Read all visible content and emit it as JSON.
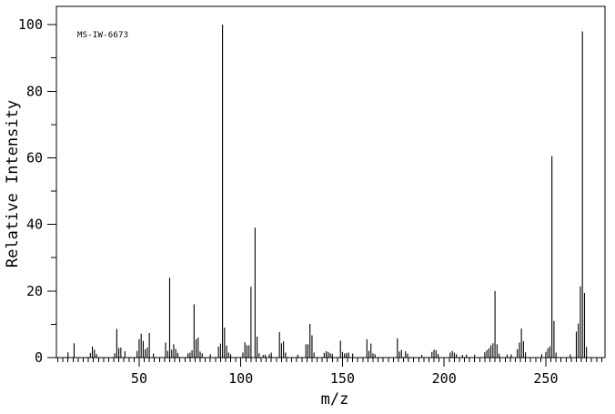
{
  "figure": {
    "background_color": "#ffffff",
    "line_color": "#000000"
  },
  "chart_data": {
    "type": "bar",
    "subtype": "mass-spectrum-stick-plot",
    "title": "MS-IW-6673",
    "xlabel": "m/z",
    "ylabel": "Relative Intensity",
    "xlim": [
      9.3,
      279.1
    ],
    "ylim": [
      0,
      105.5
    ],
    "x_ticks_major": [
      50,
      100,
      150,
      200,
      250
    ],
    "x_tick_minor_step": 2.5,
    "y_ticks_major": [
      0,
      20,
      40,
      60,
      80,
      100
    ],
    "y_tick_minor_step": 10,
    "grid": false,
    "legend": false,
    "peaks": [
      [
        15,
        1.6
      ],
      [
        18,
        4.3
      ],
      [
        26,
        1.4
      ],
      [
        27,
        3.3
      ],
      [
        28,
        2.4
      ],
      [
        29,
        1.1
      ],
      [
        38,
        1.3
      ],
      [
        39,
        8.6
      ],
      [
        40,
        2.9
      ],
      [
        41,
        3.0
      ],
      [
        43,
        1.9
      ],
      [
        49,
        2.0
      ],
      [
        50,
        5.6
      ],
      [
        51,
        7.2
      ],
      [
        52,
        5.0
      ],
      [
        53,
        2.5
      ],
      [
        54,
        3.0
      ],
      [
        55,
        7.4
      ],
      [
        57,
        1.2
      ],
      [
        63,
        4.5
      ],
      [
        64,
        2.0
      ],
      [
        65,
        24.0
      ],
      [
        66,
        2.4
      ],
      [
        67,
        4.0
      ],
      [
        68,
        2.6
      ],
      [
        69,
        1.4
      ],
      [
        74,
        1.3
      ],
      [
        75,
        1.5
      ],
      [
        76,
        2.2
      ],
      [
        77,
        16.0
      ],
      [
        78,
        5.5
      ],
      [
        79,
        6.0
      ],
      [
        80,
        1.8
      ],
      [
        81,
        1.3
      ],
      [
        85,
        1.0
      ],
      [
        89,
        3.3
      ],
      [
        90,
        4.2
      ],
      [
        91,
        100.0
      ],
      [
        92,
        9.0
      ],
      [
        93,
        3.6
      ],
      [
        94,
        1.5
      ],
      [
        95,
        1.0
      ],
      [
        101,
        1.5
      ],
      [
        102,
        4.6
      ],
      [
        103,
        3.7
      ],
      [
        104,
        3.7
      ],
      [
        105,
        21.3
      ],
      [
        107,
        39.0
      ],
      [
        108,
        6.3
      ],
      [
        109,
        1.3
      ],
      [
        111,
        0.8
      ],
      [
        112,
        0.9
      ],
      [
        114,
        1.0
      ],
      [
        115,
        1.5
      ],
      [
        119,
        7.7
      ],
      [
        120,
        4.3
      ],
      [
        121,
        4.9
      ],
      [
        122,
        1.5
      ],
      [
        128,
        0.9
      ],
      [
        132,
        4.0
      ],
      [
        133,
        4.0
      ],
      [
        134,
        10.1
      ],
      [
        135,
        6.7
      ],
      [
        136,
        1.5
      ],
      [
        141,
        1.4
      ],
      [
        142,
        1.9
      ],
      [
        143,
        1.7
      ],
      [
        144,
        1.3
      ],
      [
        145,
        1.1
      ],
      [
        149,
        5.1
      ],
      [
        150,
        1.7
      ],
      [
        151,
        1.2
      ],
      [
        152,
        1.4
      ],
      [
        153,
        1.5
      ],
      [
        155,
        1.2
      ],
      [
        162,
        5.5
      ],
      [
        163,
        2.0
      ],
      [
        164,
        4.2
      ],
      [
        165,
        1.3
      ],
      [
        166,
        1.0
      ],
      [
        177,
        5.8
      ],
      [
        178,
        1.8
      ],
      [
        179,
        2.3
      ],
      [
        181,
        1.9
      ],
      [
        182,
        1.2
      ],
      [
        189,
        0.8
      ],
      [
        194,
        1.7
      ],
      [
        195,
        2.4
      ],
      [
        196,
        2.2
      ],
      [
        197,
        1.1
      ],
      [
        203,
        1.5
      ],
      [
        204,
        2.0
      ],
      [
        205,
        1.5
      ],
      [
        206,
        1.0
      ],
      [
        209,
        0.8
      ],
      [
        211,
        0.9
      ],
      [
        215,
        0.9
      ],
      [
        220,
        1.6
      ],
      [
        221,
        2.2
      ],
      [
        222,
        2.8
      ],
      [
        223,
        3.7
      ],
      [
        224,
        4.3
      ],
      [
        225,
        20.0
      ],
      [
        226,
        4.0
      ],
      [
        227,
        1.2
      ],
      [
        231,
        0.9
      ],
      [
        233,
        1.0
      ],
      [
        236,
        2.5
      ],
      [
        237,
        4.5
      ],
      [
        238,
        8.7
      ],
      [
        239,
        4.9
      ],
      [
        240,
        1.6
      ],
      [
        248,
        1.0
      ],
      [
        250,
        1.7
      ],
      [
        251,
        2.8
      ],
      [
        252,
        3.4
      ],
      [
        253,
        60.5
      ],
      [
        254,
        11.0
      ],
      [
        255,
        1.5
      ],
      [
        262,
        1.0
      ],
      [
        265,
        7.8
      ],
      [
        266,
        10.2
      ],
      [
        267,
        21.4
      ],
      [
        268,
        98.0
      ],
      [
        269,
        19.4
      ],
      [
        270,
        3.2
      ]
    ]
  }
}
